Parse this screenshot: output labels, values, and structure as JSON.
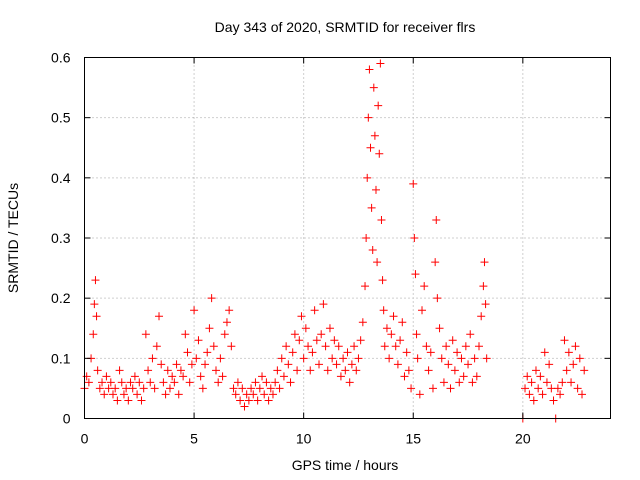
{
  "colors": {
    "series": "#ff0000",
    "grid": "#a0a0a0",
    "axis": "#000000"
  },
  "chart_data": {
    "type": "scatter",
    "title": "Day 343 of 2020, SRMTID for receiver flrs",
    "xlabel": "GPS time / hours",
    "ylabel": "SRMTID / TECUs",
    "xlim": [
      0,
      24
    ],
    "ylim": [
      0,
      0.6
    ],
    "grid": true,
    "x_ticks": [
      0,
      5,
      10,
      15,
      20
    ],
    "x_tick_labels": [
      "0",
      "5",
      "10",
      "15",
      "20"
    ],
    "y_ticks": [
      0,
      0.1,
      0.2,
      0.3,
      0.4,
      0.5,
      0.6
    ],
    "y_tick_labels": [
      "0",
      "0.1",
      "0.2",
      "0.3",
      "0.4",
      "0.5",
      "0.6"
    ],
    "series": [
      {
        "name": "SRMTID",
        "marker": "+",
        "points": [
          [
            0.0,
            0.05
          ],
          [
            0.1,
            0.07
          ],
          [
            0.2,
            0.06
          ],
          [
            0.3,
            0.1
          ],
          [
            0.4,
            0.14
          ],
          [
            0.45,
            0.19
          ],
          [
            0.5,
            0.23
          ],
          [
            0.55,
            0.17
          ],
          [
            0.6,
            0.08
          ],
          [
            0.7,
            0.05
          ],
          [
            0.8,
            0.06
          ],
          [
            0.9,
            0.04
          ],
          [
            1.0,
            0.07
          ],
          [
            1.1,
            0.05
          ],
          [
            1.2,
            0.06
          ],
          [
            1.3,
            0.04
          ],
          [
            1.4,
            0.05
          ],
          [
            1.5,
            0.03
          ],
          [
            1.6,
            0.08
          ],
          [
            1.7,
            0.06
          ],
          [
            1.8,
            0.04
          ],
          [
            1.9,
            0.05
          ],
          [
            2.0,
            0.03
          ],
          [
            2.1,
            0.06
          ],
          [
            2.2,
            0.05
          ],
          [
            2.3,
            0.07
          ],
          [
            2.4,
            0.04
          ],
          [
            2.5,
            0.06
          ],
          [
            2.6,
            0.03
          ],
          [
            2.7,
            0.05
          ],
          [
            2.8,
            0.14
          ],
          [
            2.9,
            0.08
          ],
          [
            3.0,
            0.06
          ],
          [
            3.1,
            0.1
          ],
          [
            3.2,
            0.05
          ],
          [
            3.3,
            0.12
          ],
          [
            3.4,
            0.17
          ],
          [
            3.5,
            0.09
          ],
          [
            3.6,
            0.06
          ],
          [
            3.7,
            0.04
          ],
          [
            3.8,
            0.08
          ],
          [
            3.9,
            0.05
          ],
          [
            4.0,
            0.07
          ],
          [
            4.1,
            0.06
          ],
          [
            4.2,
            0.09
          ],
          [
            4.3,
            0.04
          ],
          [
            4.4,
            0.08
          ],
          [
            4.5,
            0.07
          ],
          [
            4.6,
            0.14
          ],
          [
            4.7,
            0.11
          ],
          [
            4.8,
            0.06
          ],
          [
            4.9,
            0.09
          ],
          [
            5.0,
            0.18
          ],
          [
            5.1,
            0.1
          ],
          [
            5.2,
            0.13
          ],
          [
            5.3,
            0.07
          ],
          [
            5.4,
            0.05
          ],
          [
            5.5,
            0.09
          ],
          [
            5.6,
            0.11
          ],
          [
            5.7,
            0.15
          ],
          [
            5.8,
            0.2
          ],
          [
            5.9,
            0.12
          ],
          [
            6.0,
            0.08
          ],
          [
            6.1,
            0.06
          ],
          [
            6.2,
            0.1
          ],
          [
            6.3,
            0.07
          ],
          [
            6.4,
            0.14
          ],
          [
            6.5,
            0.16
          ],
          [
            6.6,
            0.18
          ],
          [
            6.7,
            0.12
          ],
          [
            6.8,
            0.05
          ],
          [
            6.9,
            0.04
          ],
          [
            7.0,
            0.06
          ],
          [
            7.1,
            0.03
          ],
          [
            7.2,
            0.05
          ],
          [
            7.3,
            0.02
          ],
          [
            7.4,
            0.04
          ],
          [
            7.5,
            0.03
          ],
          [
            7.6,
            0.05
          ],
          [
            7.7,
            0.04
          ],
          [
            7.8,
            0.06
          ],
          [
            7.9,
            0.03
          ],
          [
            8.0,
            0.05
          ],
          [
            8.1,
            0.07
          ],
          [
            8.2,
            0.04
          ],
          [
            8.3,
            0.06
          ],
          [
            8.4,
            0.03
          ],
          [
            8.5,
            0.05
          ],
          [
            8.6,
            0.04
          ],
          [
            8.7,
            0.06
          ],
          [
            8.8,
            0.08
          ],
          [
            8.9,
            0.05
          ],
          [
            9.0,
            0.1
          ],
          [
            9.1,
            0.07
          ],
          [
            9.2,
            0.12
          ],
          [
            9.3,
            0.09
          ],
          [
            9.4,
            0.06
          ],
          [
            9.5,
            0.11
          ],
          [
            9.6,
            0.14
          ],
          [
            9.7,
            0.08
          ],
          [
            9.8,
            0.13
          ],
          [
            9.9,
            0.17
          ],
          [
            10.0,
            0.1
          ],
          [
            10.1,
            0.15
          ],
          [
            10.2,
            0.12
          ],
          [
            10.3,
            0.08
          ],
          [
            10.4,
            0.11
          ],
          [
            10.5,
            0.18
          ],
          [
            10.6,
            0.13
          ],
          [
            10.7,
            0.09
          ],
          [
            10.8,
            0.14
          ],
          [
            10.9,
            0.19
          ],
          [
            11.0,
            0.12
          ],
          [
            11.1,
            0.08
          ],
          [
            11.2,
            0.15
          ],
          [
            11.3,
            0.1
          ],
          [
            11.4,
            0.13
          ],
          [
            11.5,
            0.09
          ],
          [
            11.6,
            0.12
          ],
          [
            11.7,
            0.07
          ],
          [
            11.8,
            0.1
          ],
          [
            11.9,
            0.08
          ],
          [
            12.0,
            0.11
          ],
          [
            12.1,
            0.06
          ],
          [
            12.2,
            0.09
          ],
          [
            12.3,
            0.12
          ],
          [
            12.4,
            0.08
          ],
          [
            12.5,
            0.1
          ],
          [
            12.6,
            0.13
          ],
          [
            12.7,
            0.16
          ],
          [
            12.8,
            0.22
          ],
          [
            12.85,
            0.3
          ],
          [
            12.9,
            0.4
          ],
          [
            12.95,
            0.5
          ],
          [
            13.0,
            0.58
          ],
          [
            13.05,
            0.45
          ],
          [
            13.1,
            0.35
          ],
          [
            13.15,
            0.28
          ],
          [
            13.2,
            0.55
          ],
          [
            13.25,
            0.47
          ],
          [
            13.3,
            0.38
          ],
          [
            13.35,
            0.26
          ],
          [
            13.4,
            0.52
          ],
          [
            13.45,
            0.44
          ],
          [
            13.5,
            0.59
          ],
          [
            13.55,
            0.33
          ],
          [
            13.6,
            0.23
          ],
          [
            13.65,
            0.18
          ],
          [
            13.7,
            0.12
          ],
          [
            13.8,
            0.15
          ],
          [
            13.9,
            0.1
          ],
          [
            14.0,
            0.14
          ],
          [
            14.1,
            0.17
          ],
          [
            14.2,
            0.12
          ],
          [
            14.3,
            0.09
          ],
          [
            14.4,
            0.13
          ],
          [
            14.5,
            0.16
          ],
          [
            14.6,
            0.07
          ],
          [
            14.7,
            0.11
          ],
          [
            14.8,
            0.08
          ],
          [
            14.9,
            0.05
          ],
          [
            15.0,
            0.39
          ],
          [
            15.05,
            0.3
          ],
          [
            15.1,
            0.24
          ],
          [
            15.15,
            0.14
          ],
          [
            15.2,
            0.1
          ],
          [
            15.3,
            0.04
          ],
          [
            15.4,
            0.18
          ],
          [
            15.5,
            0.22
          ],
          [
            15.6,
            0.12
          ],
          [
            15.7,
            0.08
          ],
          [
            15.8,
            0.11
          ],
          [
            15.9,
            0.05
          ],
          [
            16.0,
            0.26
          ],
          [
            16.05,
            0.33
          ],
          [
            16.1,
            0.2
          ],
          [
            16.2,
            0.15
          ],
          [
            16.3,
            0.1
          ],
          [
            16.4,
            0.06
          ],
          [
            16.5,
            0.12
          ],
          [
            16.6,
            0.09
          ],
          [
            16.7,
            0.05
          ],
          [
            16.8,
            0.13
          ],
          [
            16.9,
            0.08
          ],
          [
            17.0,
            0.11
          ],
          [
            17.1,
            0.06
          ],
          [
            17.2,
            0.1
          ],
          [
            17.3,
            0.07
          ],
          [
            17.4,
            0.12
          ],
          [
            17.5,
            0.09
          ],
          [
            17.6,
            0.14
          ],
          [
            17.7,
            0.06
          ],
          [
            17.8,
            0.1
          ],
          [
            17.9,
            0.07
          ],
          [
            18.0,
            0.12
          ],
          [
            18.1,
            0.17
          ],
          [
            18.2,
            0.22
          ],
          [
            18.25,
            0.26
          ],
          [
            18.3,
            0.19
          ],
          [
            18.35,
            0.1
          ],
          [
            20.0,
            0.0
          ],
          [
            20.1,
            0.05
          ],
          [
            20.2,
            0.07
          ],
          [
            20.3,
            0.04
          ],
          [
            20.4,
            0.06
          ],
          [
            20.5,
            0.03
          ],
          [
            20.6,
            0.08
          ],
          [
            20.7,
            0.05
          ],
          [
            20.8,
            0.07
          ],
          [
            20.9,
            0.04
          ],
          [
            21.0,
            0.11
          ],
          [
            21.1,
            0.06
          ],
          [
            21.2,
            0.09
          ],
          [
            21.3,
            0.05
          ],
          [
            21.4,
            0.03
          ],
          [
            21.5,
            0.0
          ],
          [
            21.6,
            0.05
          ],
          [
            21.7,
            0.04
          ],
          [
            21.8,
            0.06
          ],
          [
            21.9,
            0.13
          ],
          [
            22.0,
            0.08
          ],
          [
            22.1,
            0.11
          ],
          [
            22.2,
            0.06
          ],
          [
            22.3,
            0.09
          ],
          [
            22.4,
            0.12
          ],
          [
            22.5,
            0.05
          ],
          [
            22.6,
            0.1
          ],
          [
            22.7,
            0.04
          ],
          [
            22.8,
            0.08
          ]
        ]
      }
    ]
  }
}
